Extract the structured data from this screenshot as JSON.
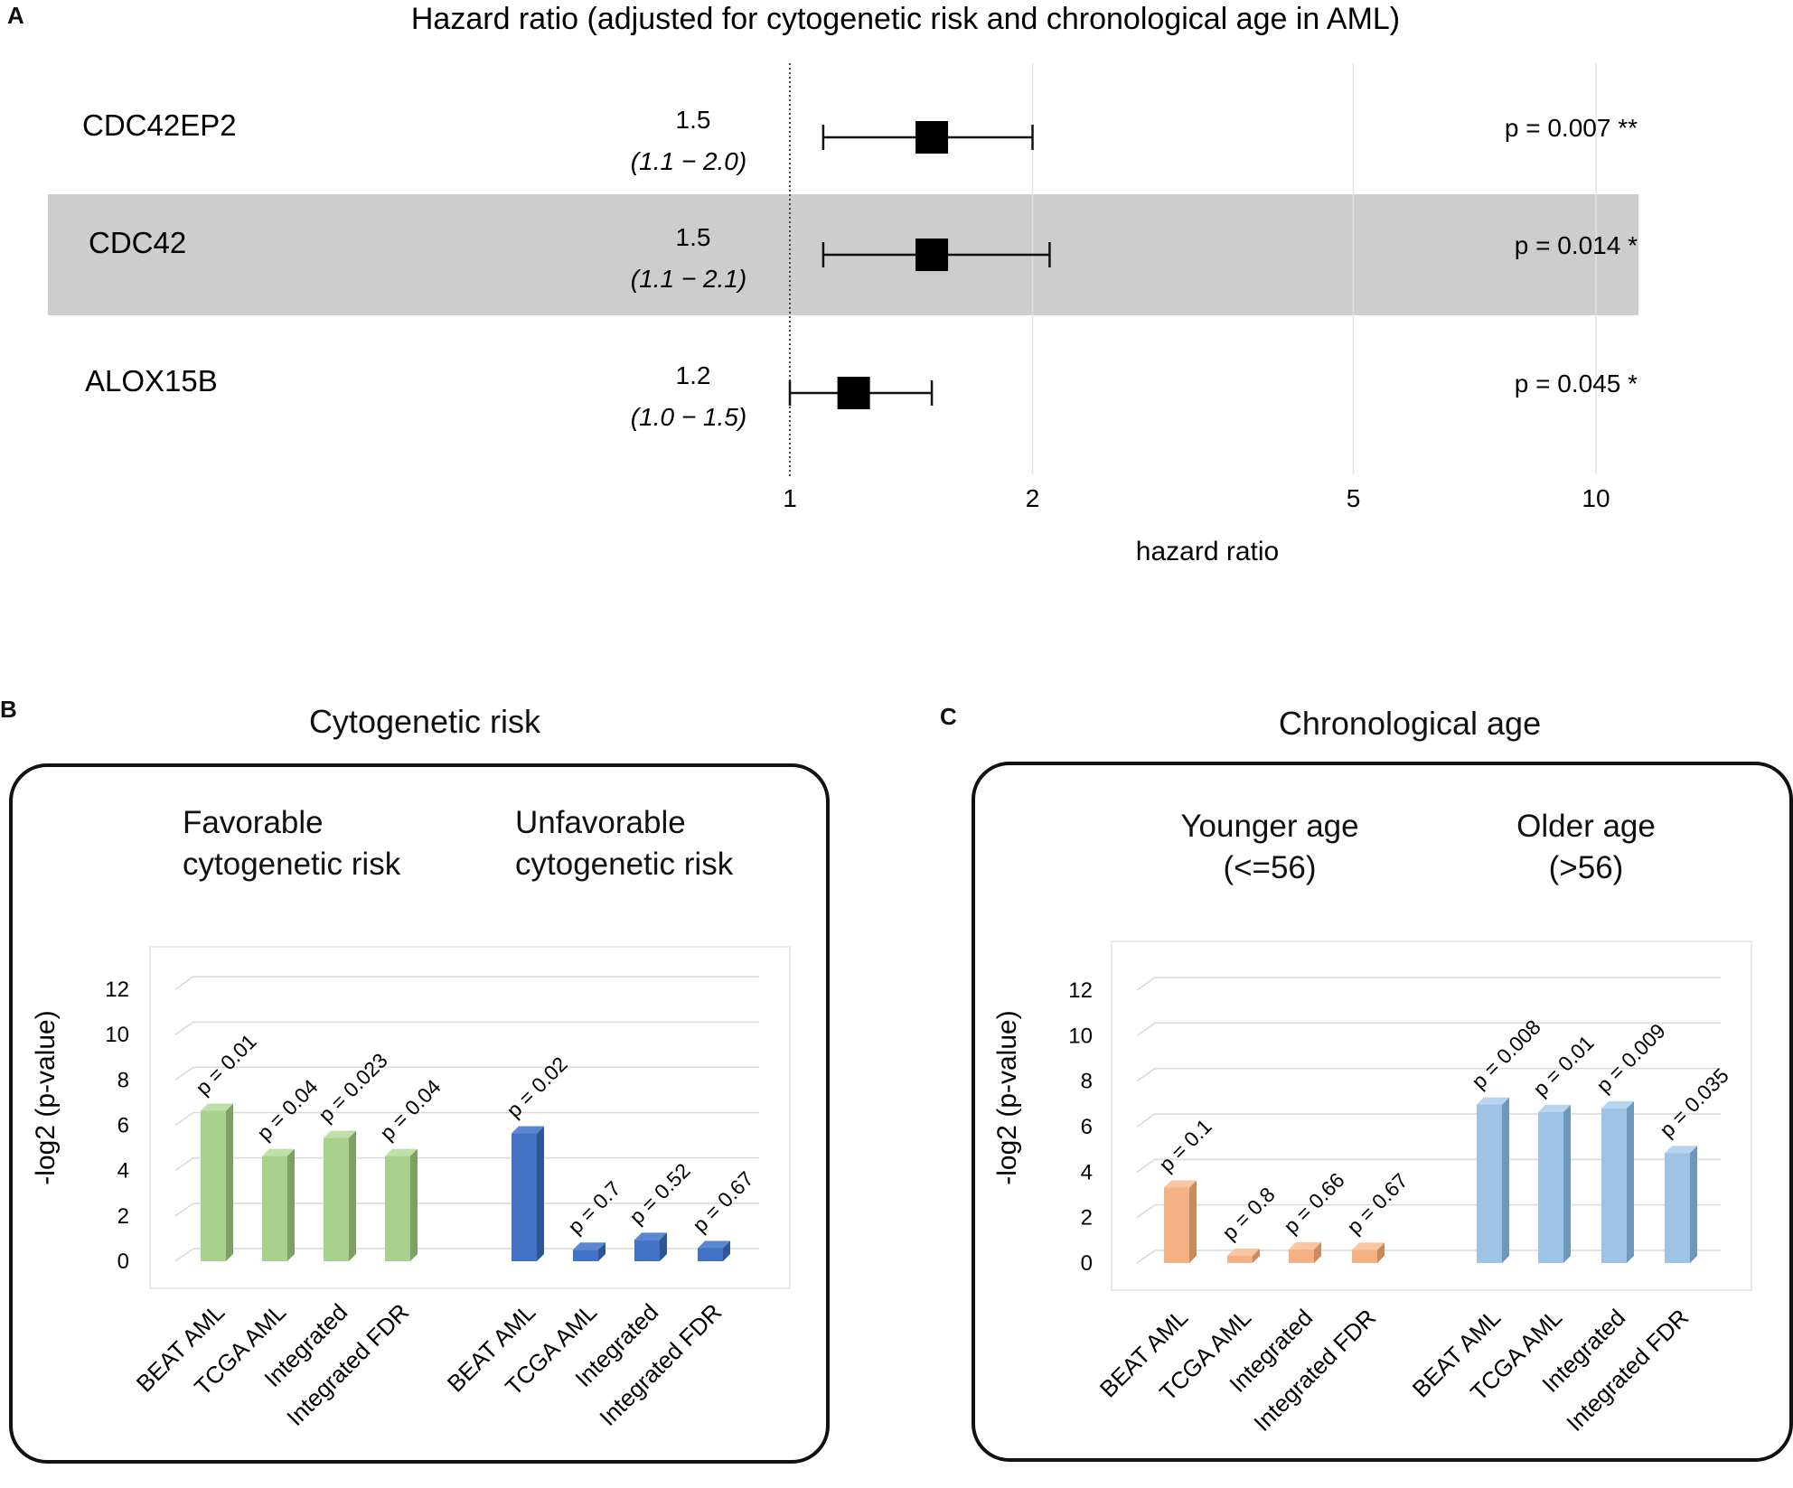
{
  "panels": {
    "A": {
      "letter": "A"
    },
    "B": {
      "letter": "B"
    },
    "C": {
      "letter": "C"
    }
  },
  "chart_data": [
    {
      "type": "forest",
      "title": "Hazard ratio (adjusted for cytogenetic risk and chronological age in AML)",
      "xlabel": "hazard ratio",
      "xscale": "log",
      "xticks": [
        1,
        2,
        5,
        10
      ],
      "tick_labels": [
        "1",
        "2",
        "5",
        "10"
      ],
      "reference_line": 1,
      "rows": [
        {
          "label": "CDC42EP2",
          "hr": 1.5,
          "hr_label": "1.5",
          "ci_low": 1.1,
          "ci_high": 2.0,
          "ci_label": "(1.1 − 2.0)",
          "p_label": "p = 0.007 **",
          "shaded": false
        },
        {
          "label": "CDC42",
          "hr": 1.5,
          "hr_label": "1.5",
          "ci_low": 1.1,
          "ci_high": 2.1,
          "ci_label": "(1.1 − 2.1)",
          "p_label": "p = 0.014 *",
          "shaded": true
        },
        {
          "label": "ALOX15B",
          "hr": 1.2,
          "hr_label": "1.2",
          "ci_low": 1.0,
          "ci_high": 1.5,
          "ci_label": "(1.0 − 1.5)",
          "p_label": "p = 0.045 *",
          "shaded": false
        }
      ]
    },
    {
      "type": "bar",
      "title": "Cytogenetic risk",
      "ylabel": "-log2 (p-value)",
      "ylim": [
        0,
        12
      ],
      "yticks": [
        0,
        2,
        4,
        6,
        8,
        10,
        12
      ],
      "categories": [
        "BEAT AML",
        "TCGA AML",
        "Integrated",
        "Integrated FDR"
      ],
      "groups": [
        {
          "name_line1": "Favorable",
          "name_line2": "cytogenetic risk",
          "color": "#a9d18e",
          "side": "#7fa065",
          "top": "#bfe0a8",
          "values": [
            6.64,
            4.64,
            5.44,
            4.64
          ],
          "p_labels": [
            "p = 0.01",
            "p = 0.04",
            "p = 0.023",
            "p = 0.04"
          ]
        },
        {
          "name_line1": "Unfavorable",
          "name_line2": "cytogenetic risk",
          "color": "#4472c4",
          "side": "#2f5597",
          "top": "#5b86d1",
          "values": [
            5.64,
            0.51,
            0.94,
            0.58
          ],
          "p_labels": [
            "p = 0.02",
            "p = 0.7",
            "p = 0.52",
            "p = 0.67"
          ]
        }
      ]
    },
    {
      "type": "bar",
      "title": "Chronological age",
      "ylabel": "-log2 (p-value)",
      "ylim": [
        0,
        12
      ],
      "yticks": [
        0,
        2,
        4,
        6,
        8,
        10,
        12
      ],
      "categories": [
        "BEAT AML",
        "TCGA AML",
        "Integrated",
        "Integrated FDR"
      ],
      "groups": [
        {
          "name_line1": "Younger age",
          "name_line2": "(<=56)",
          "color": "#f4b183",
          "side": "#c98a5e",
          "top": "#f8c6a4",
          "values": [
            3.32,
            0.32,
            0.6,
            0.58
          ],
          "p_labels": [
            "p = 0.1",
            "p = 0.8",
            "p = 0.66",
            "p = 0.67"
          ]
        },
        {
          "name_line1": "Older age",
          "name_line2": "(>56)",
          "color": "#9dc3e6",
          "side": "#6f97bd",
          "top": "#b8d4ee",
          "values": [
            6.97,
            6.64,
            6.8,
            4.84
          ],
          "p_labels": [
            "p = 0.008",
            "p = 0.01",
            "p = 0.009",
            "p = 0.035"
          ]
        }
      ]
    }
  ]
}
